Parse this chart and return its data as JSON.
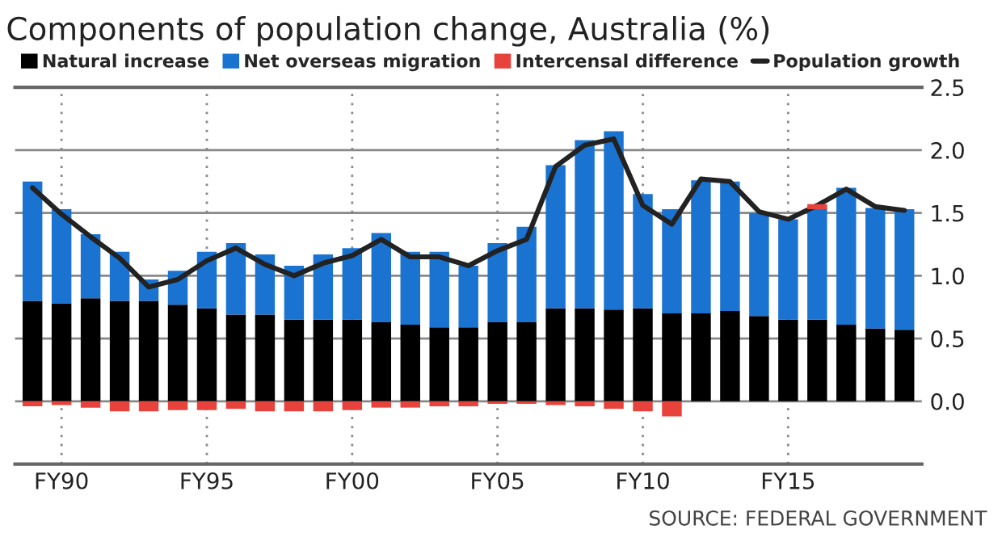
{
  "chart_data": {
    "type": "bar",
    "stacked": true,
    "title": "Components of population change, Australia (%)",
    "categories": [
      null,
      "FY90",
      null,
      null,
      null,
      null,
      "FY95",
      null,
      null,
      null,
      null,
      "FY00",
      null,
      null,
      null,
      null,
      "FY05",
      null,
      null,
      null,
      null,
      "FY10",
      null,
      null,
      null,
      null,
      "FY15",
      null,
      null,
      null,
      null
    ],
    "series": [
      {
        "name": "Natural increase",
        "color": "#000000",
        "values": [
          0.8,
          0.78,
          0.82,
          0.8,
          0.8,
          0.77,
          0.74,
          0.69,
          0.69,
          0.65,
          0.65,
          0.65,
          0.63,
          0.61,
          0.59,
          0.59,
          0.63,
          0.63,
          0.74,
          0.74,
          0.73,
          0.74,
          0.7,
          0.7,
          0.72,
          0.68,
          0.65,
          0.65,
          0.61,
          0.58,
          0.57
        ]
      },
      {
        "name": "Net overseas migration",
        "color": "#1a73d0",
        "values": [
          0.95,
          0.75,
          0.51,
          0.39,
          0.17,
          0.27,
          0.45,
          0.57,
          0.48,
          0.43,
          0.52,
          0.57,
          0.71,
          0.58,
          0.6,
          0.49,
          0.63,
          0.76,
          1.14,
          1.34,
          1.42,
          0.91,
          0.83,
          1.06,
          1.03,
          0.82,
          0.8,
          0.88,
          1.09,
          0.96,
          0.96
        ]
      },
      {
        "name": "Intercensal difference",
        "color": "#e8423c",
        "values": [
          -0.04,
          -0.03,
          -0.05,
          -0.08,
          -0.08,
          -0.07,
          -0.07,
          -0.06,
          -0.08,
          -0.08,
          -0.08,
          -0.07,
          -0.05,
          -0.05,
          -0.04,
          -0.04,
          -0.02,
          -0.02,
          -0.03,
          -0.04,
          -0.06,
          -0.08,
          -0.12,
          null,
          null,
          null,
          null,
          0.04,
          null,
          null,
          null
        ]
      },
      {
        "name": "Population growth",
        "type": "line",
        "color": "#222222",
        "values": [
          1.7,
          1.49,
          1.31,
          1.14,
          0.91,
          0.97,
          1.12,
          1.22,
          1.09,
          1.0,
          1.1,
          1.16,
          1.29,
          1.15,
          1.15,
          1.08,
          1.2,
          1.29,
          1.87,
          2.04,
          2.09,
          1.56,
          1.41,
          1.77,
          1.75,
          1.51,
          1.45,
          1.56,
          1.69,
          1.55,
          1.52
        ]
      }
    ],
    "ylim": [
      -0.5,
      2.5
    ],
    "yticks": [
      {
        "value": 0,
        "label": "0.0"
      },
      {
        "value": 0.5,
        "label": "0.5"
      },
      {
        "value": 1,
        "label": "1.0"
      },
      {
        "value": 1.5,
        "label": "1.5"
      },
      {
        "value": 2,
        "label": "2.0"
      },
      {
        "value": 2.5,
        "label": "2.5"
      }
    ],
    "grid": true,
    "legend": "top",
    "annotations": [
      "SOURCE: FEDERAL GOVERNMENT"
    ]
  }
}
